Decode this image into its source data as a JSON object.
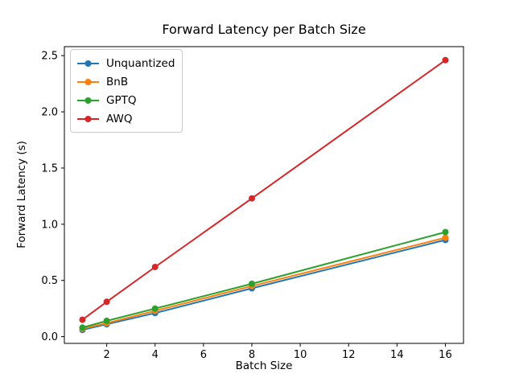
{
  "chart_data": {
    "type": "line",
    "title": "Forward Latency per Batch Size",
    "xlabel": "Batch Size",
    "ylabel": "Forward Latency (s)",
    "x": [
      1,
      2,
      4,
      8,
      16
    ],
    "series": [
      {
        "name": "Unquantized",
        "color": "#1f77b4",
        "values": [
          0.06,
          0.11,
          0.21,
          0.43,
          0.86
        ]
      },
      {
        "name": "BnB",
        "color": "#ff7f0e",
        "values": [
          0.07,
          0.12,
          0.23,
          0.45,
          0.88
        ]
      },
      {
        "name": "GPTQ",
        "color": "#2ca02c",
        "values": [
          0.08,
          0.14,
          0.25,
          0.47,
          0.93
        ]
      },
      {
        "name": "AWQ",
        "color": "#d62728",
        "values": [
          0.15,
          0.31,
          0.62,
          1.23,
          2.46
        ]
      }
    ],
    "xlim": [
      0.25,
      16.75
    ],
    "ylim": [
      -0.06,
      2.58
    ],
    "xticks": {
      "values": [
        2,
        4,
        6,
        8,
        10,
        12,
        14,
        16
      ],
      "labels": [
        "2",
        "4",
        "6",
        "8",
        "10",
        "12",
        "14",
        "16"
      ]
    },
    "yticks": {
      "values": [
        0.0,
        0.5,
        1.0,
        1.5,
        2.0,
        2.5
      ],
      "labels": [
        "0.0",
        "0.5",
        "1.0",
        "1.5",
        "2.0",
        "2.5"
      ]
    },
    "legend_position": "upper left",
    "grid": false,
    "axis_color": "#000000",
    "marker": "o"
  }
}
